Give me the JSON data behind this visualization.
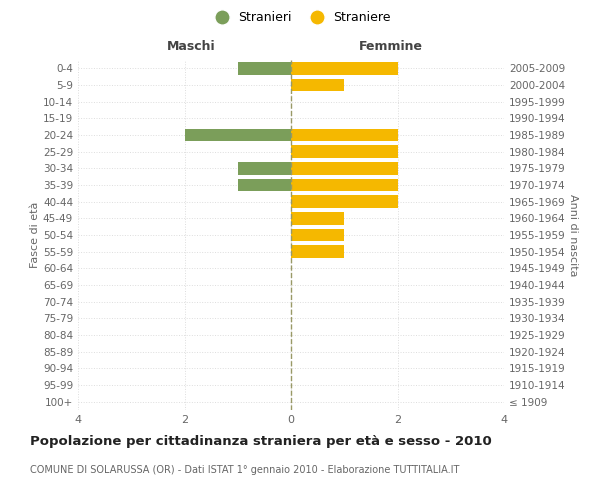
{
  "age_groups": [
    "100+",
    "95-99",
    "90-94",
    "85-89",
    "80-84",
    "75-79",
    "70-74",
    "65-69",
    "60-64",
    "55-59",
    "50-54",
    "45-49",
    "40-44",
    "35-39",
    "30-34",
    "25-29",
    "20-24",
    "15-19",
    "10-14",
    "5-9",
    "0-4"
  ],
  "birth_years": [
    "≤ 1909",
    "1910-1914",
    "1915-1919",
    "1920-1924",
    "1925-1929",
    "1930-1934",
    "1935-1939",
    "1940-1944",
    "1945-1949",
    "1950-1954",
    "1955-1959",
    "1960-1964",
    "1965-1969",
    "1970-1974",
    "1975-1979",
    "1980-1984",
    "1985-1989",
    "1990-1994",
    "1995-1999",
    "2000-2004",
    "2005-2009"
  ],
  "males": [
    0,
    0,
    0,
    0,
    0,
    0,
    0,
    0,
    0,
    0,
    0,
    0,
    0,
    1,
    1,
    0,
    2,
    0,
    0,
    0,
    1
  ],
  "females": [
    0,
    0,
    0,
    0,
    0,
    0,
    0,
    0,
    0,
    1,
    1,
    1,
    2,
    2,
    2,
    2,
    2,
    0,
    0,
    1,
    2
  ],
  "male_color": "#7B9E5A",
  "female_color": "#F5B800",
  "title": "Popolazione per cittadinanza straniera per età e sesso - 2010",
  "subtitle": "COMUNE DI SOLARUSSA (OR) - Dati ISTAT 1° gennaio 2010 - Elaborazione TUTTITALIA.IT",
  "xlabel_left": "Maschi",
  "xlabel_right": "Femmine",
  "ylabel_left": "Fasce di età",
  "ylabel_right": "Anni di nascita",
  "legend_male": "Stranieri",
  "legend_female": "Straniere",
  "xlim": 4,
  "background_color": "#ffffff",
  "grid_color": "#cccccc"
}
